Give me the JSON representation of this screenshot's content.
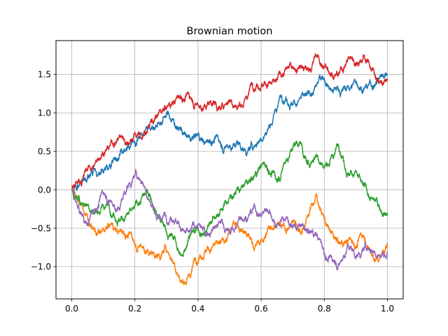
{
  "chart_data": {
    "type": "line",
    "title": "Brownian motion",
    "xlabel": "",
    "ylabel": "",
    "xlim": [
      -0.05,
      1.05
    ],
    "ylim": [
      -1.42,
      1.94
    ],
    "grid": true,
    "x_ticks": [
      0.0,
      0.2,
      0.4,
      0.6,
      0.8,
      1.0
    ],
    "x_tick_labels": [
      "0.0",
      "0.2",
      "0.4",
      "0.6",
      "0.8",
      "1.0"
    ],
    "y_ticks": [
      -1.0,
      -0.5,
      0.0,
      0.5,
      1.0,
      1.5
    ],
    "y_tick_labels": [
      "−1.0",
      "−0.5",
      "0.0",
      "0.5",
      "1.0",
      "1.5"
    ],
    "x": [
      0.0,
      0.025,
      0.05,
      0.075,
      0.1,
      0.125,
      0.15,
      0.175,
      0.2,
      0.225,
      0.25,
      0.275,
      0.3,
      0.325,
      0.35,
      0.375,
      0.4,
      0.425,
      0.45,
      0.475,
      0.5,
      0.525,
      0.55,
      0.575,
      0.6,
      0.625,
      0.65,
      0.675,
      0.7,
      0.725,
      0.75,
      0.775,
      0.8,
      0.825,
      0.85,
      0.875,
      0.9,
      0.925,
      0.95,
      0.975,
      1.0
    ],
    "series": [
      {
        "color": "#1f77b4",
        "values": [
          0.0,
          0.1,
          0.18,
          0.25,
          0.22,
          0.3,
          0.42,
          0.55,
          0.6,
          0.7,
          0.78,
          0.88,
          1.0,
          0.85,
          0.75,
          0.65,
          0.72,
          0.62,
          0.65,
          0.55,
          0.58,
          0.62,
          0.5,
          0.52,
          0.65,
          0.85,
          1.05,
          1.15,
          1.1,
          1.2,
          1.25,
          1.35,
          1.45,
          1.3,
          1.25,
          1.35,
          1.4,
          1.3,
          1.35,
          1.45,
          1.48
        ]
      },
      {
        "color": "#ff7f0e",
        "values": [
          0.05,
          -0.2,
          -0.35,
          -0.55,
          -0.5,
          -0.45,
          -0.55,
          -0.6,
          -0.7,
          -0.75,
          -0.8,
          -0.85,
          -0.8,
          -0.95,
          -1.2,
          -1.15,
          -0.95,
          -0.8,
          -0.7,
          -0.65,
          -0.55,
          -0.45,
          -0.55,
          -0.75,
          -0.65,
          -0.5,
          -0.45,
          -0.5,
          -0.4,
          -0.55,
          -0.35,
          -0.05,
          -0.35,
          -0.55,
          -0.7,
          -0.65,
          -0.75,
          -0.6,
          -0.85,
          -0.9,
          -0.7
        ]
      },
      {
        "color": "#2ca02c",
        "values": [
          0.0,
          -0.15,
          -0.2,
          -0.3,
          -0.2,
          -0.35,
          -0.4,
          -0.3,
          -0.2,
          -0.05,
          -0.1,
          -0.35,
          -0.55,
          -0.6,
          -0.85,
          -0.6,
          -0.5,
          -0.55,
          -0.35,
          -0.25,
          -0.1,
          0.0,
          0.1,
          0.15,
          0.3,
          0.25,
          0.1,
          0.35,
          0.55,
          0.6,
          0.35,
          0.45,
          0.3,
          0.45,
          0.5,
          0.2,
          0.25,
          0.05,
          -0.1,
          -0.25,
          -0.3
        ]
      },
      {
        "color": "#d62728",
        "values": [
          0.05,
          0.1,
          0.25,
          0.35,
          0.45,
          0.65,
          0.7,
          0.6,
          0.75,
          0.7,
          0.9,
          1.0,
          1.05,
          1.15,
          1.15,
          1.2,
          1.1,
          1.05,
          1.15,
          1.1,
          1.15,
          1.05,
          1.2,
          1.3,
          1.35,
          1.4,
          1.45,
          1.55,
          1.6,
          1.6,
          1.55,
          1.75,
          1.6,
          1.5,
          1.55,
          1.7,
          1.65,
          1.75,
          1.55,
          1.4,
          1.42
        ]
      },
      {
        "color": "#9467bd",
        "values": [
          0.0,
          -0.3,
          -0.45,
          -0.25,
          -0.05,
          -0.15,
          -0.25,
          0.05,
          0.2,
          0.1,
          -0.2,
          -0.35,
          -0.4,
          -0.45,
          -0.5,
          -0.55,
          -0.45,
          -0.6,
          -0.5,
          -0.4,
          -0.55,
          -0.45,
          -0.35,
          -0.25,
          -0.35,
          -0.3,
          -0.45,
          -0.4,
          -0.5,
          -0.45,
          -0.55,
          -0.6,
          -0.85,
          -0.9,
          -0.95,
          -0.7,
          -0.9,
          -0.75,
          -0.8,
          -0.85,
          -0.8
        ]
      }
    ]
  }
}
